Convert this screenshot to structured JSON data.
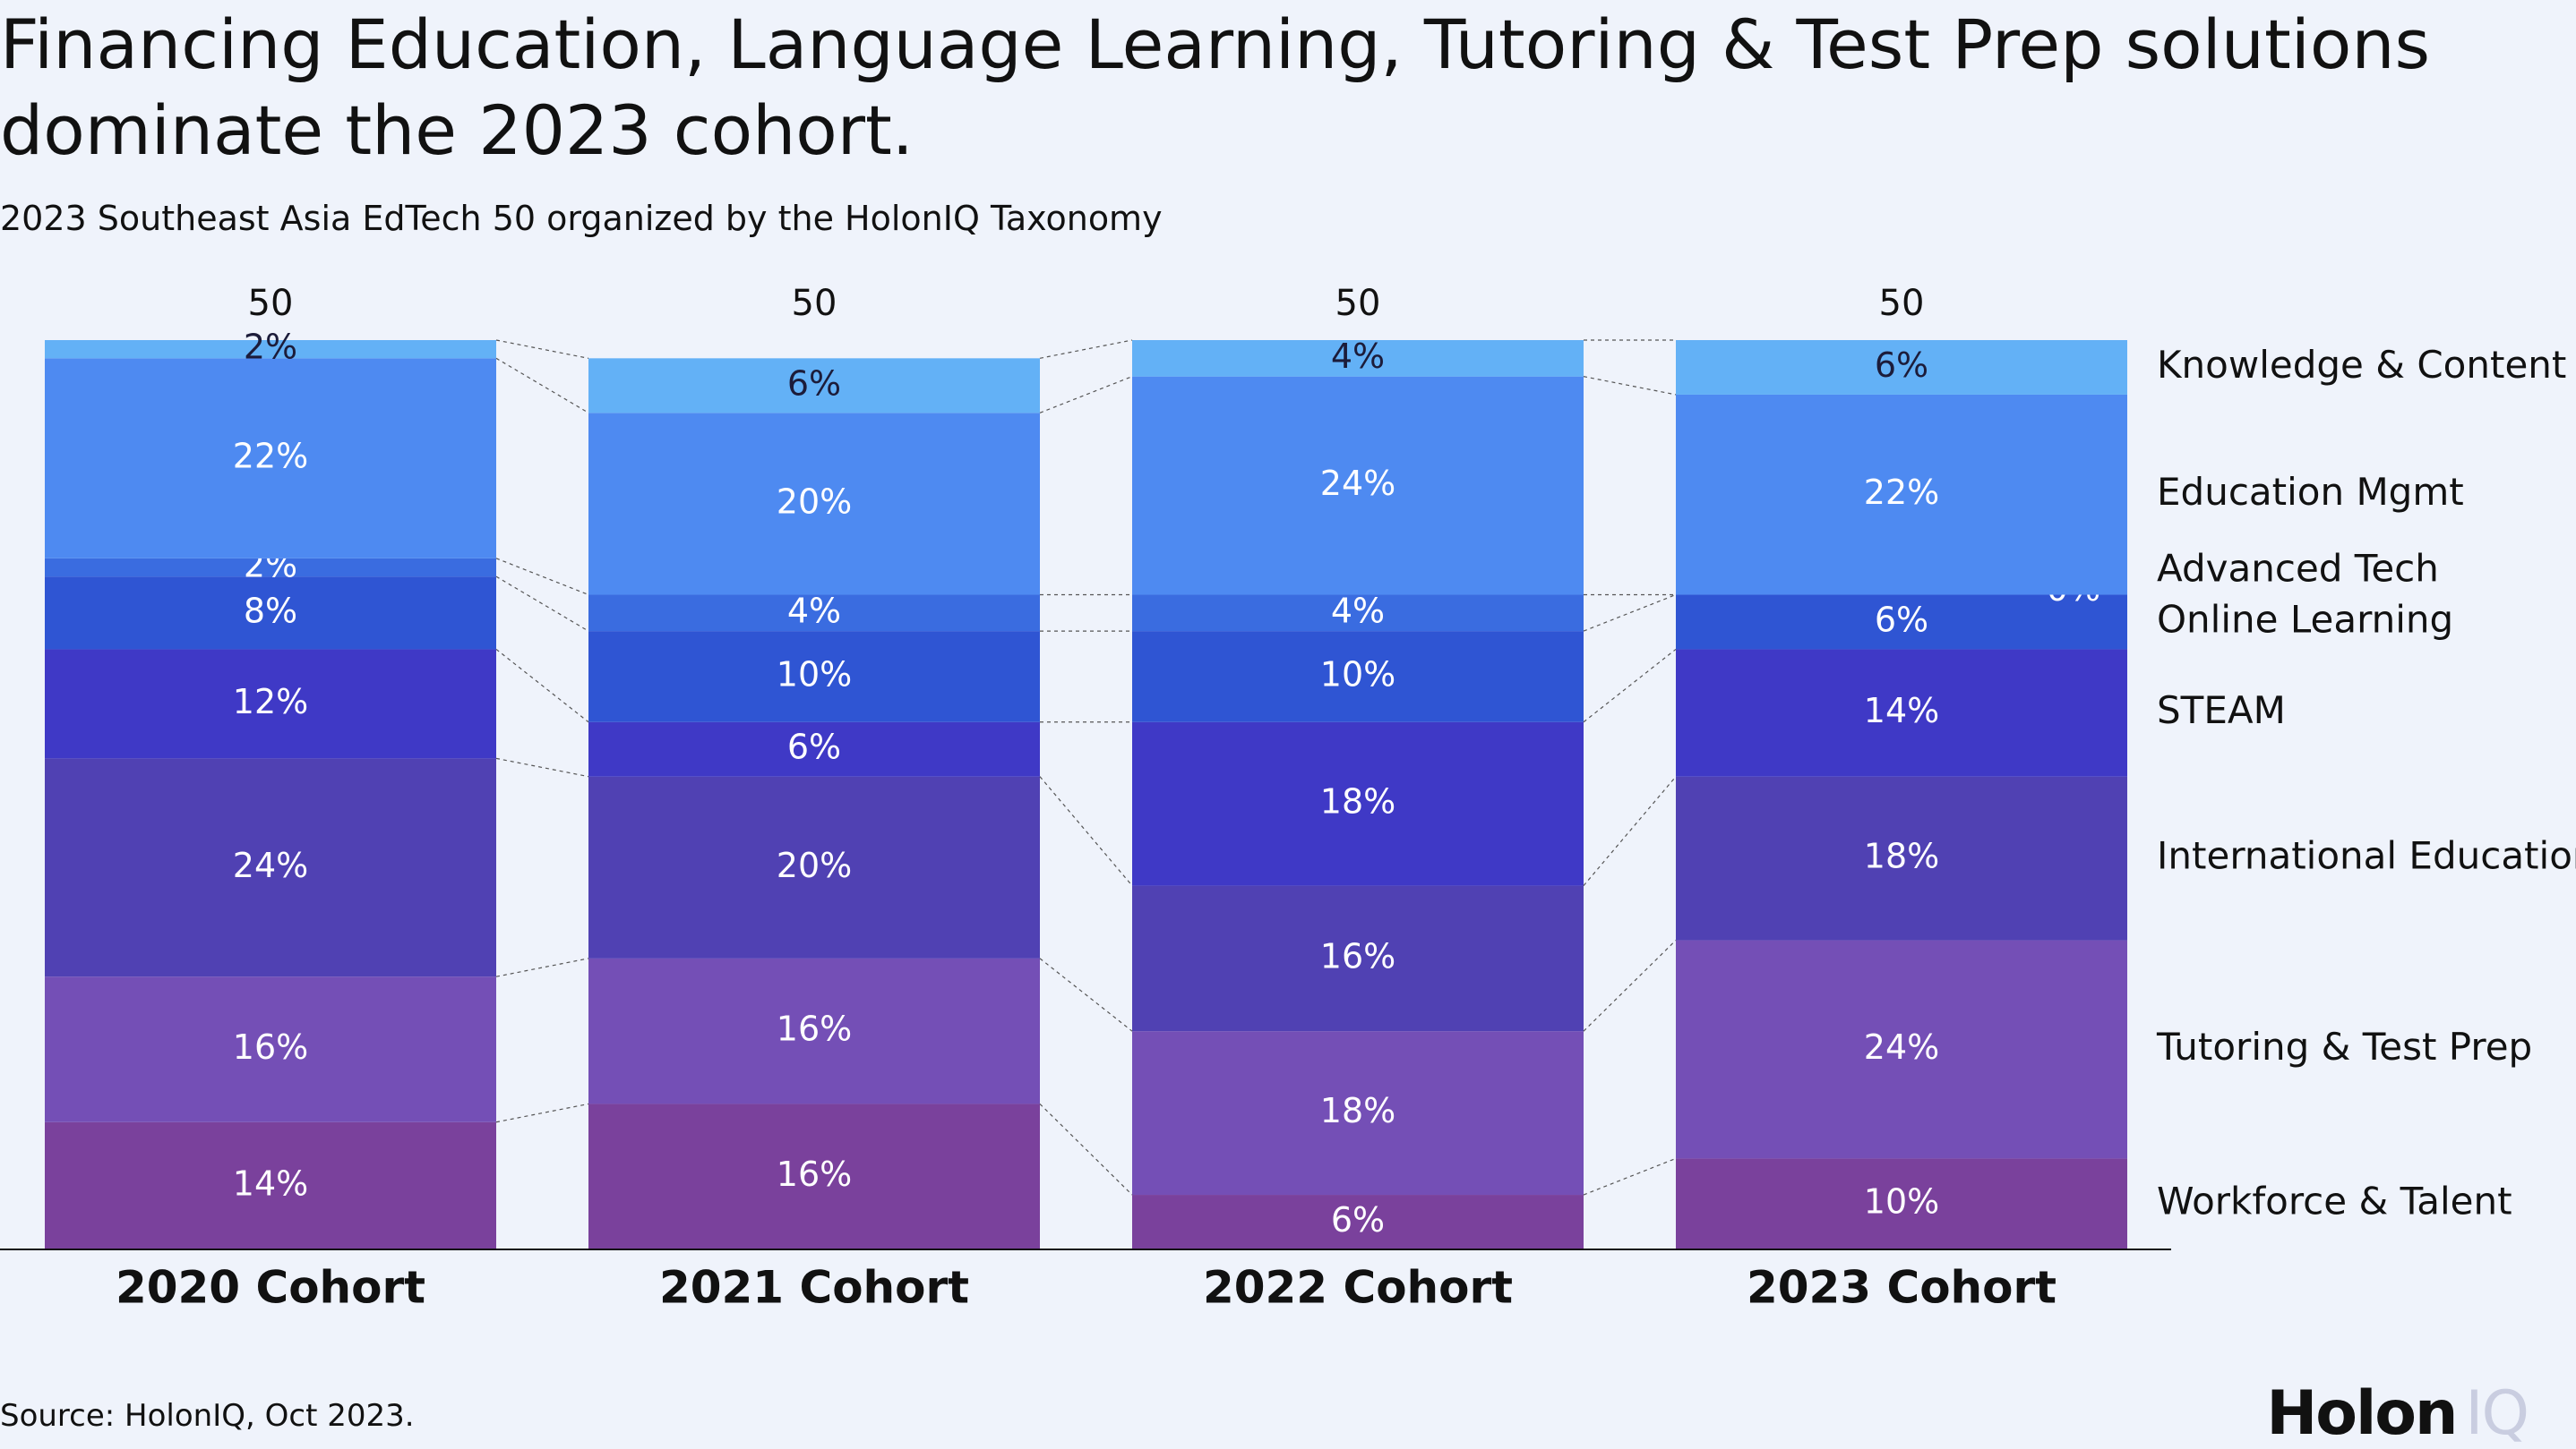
{
  "chart_data": {
    "type": "stacked_bar_percent",
    "title": "Financing Education, Language Learning, Tutoring & Test Prep solutions dominate the 2023 cohort.",
    "subtitle": "2023 Southeast Asia EdTech 50 organized by the HolonIQ Taxonomy",
    "source": "Source: HolonIQ, Oct 2023.",
    "logo": [
      "Holon",
      "IQ"
    ],
    "categories": [
      "2020 Cohort",
      "2021 Cohort",
      "2022 Cohort",
      "2023 Cohort"
    ],
    "totals": [
      50,
      50,
      50,
      50
    ],
    "ylim": [
      0,
      100
    ],
    "legend": "right",
    "series": [
      {
        "name": "Workforce & Talent",
        "color": "#7a419c",
        "label_color": "#ffffff",
        "values": [
          14,
          16,
          6,
          10
        ],
        "value_labels": [
          "14%",
          "16%",
          "6%",
          "10%"
        ]
      },
      {
        "name": "Tutoring & Test Prep",
        "color": "#744fb6",
        "label_color": "#ffffff",
        "values": [
          16,
          16,
          18,
          24
        ],
        "value_labels": [
          "16%",
          "16%",
          "18%",
          "24%"
        ]
      },
      {
        "name": "International Education",
        "color": "#5041b3",
        "label_color": "#ffffff",
        "values": [
          24,
          20,
          16,
          18
        ],
        "value_labels": [
          "24%",
          "20%",
          "16%",
          "18%"
        ]
      },
      {
        "name": "STEAM",
        "color": "#3f39c6",
        "label_color": "#ffffff",
        "values": [
          12,
          6,
          18,
          14
        ],
        "value_labels": [
          "12%",
          "6%",
          "18%",
          "14%"
        ]
      },
      {
        "name": "Online Learning",
        "color": "#2f55d3",
        "label_color": "#ffffff",
        "values": [
          8,
          10,
          10,
          6
        ],
        "value_labels": [
          "8%",
          "10%",
          "10%",
          "6%"
        ]
      },
      {
        "name": "Advanced Tech",
        "color": "#3a6ce0",
        "label_color": "#ffffff",
        "values": [
          2,
          4,
          4,
          0
        ],
        "value_labels": [
          "2%",
          "4%",
          "4%",
          "0%"
        ]
      },
      {
        "name": "Education Mgmt",
        "color": "#4e8af1",
        "label_color": "#ffffff",
        "values": [
          22,
          20,
          24,
          22
        ],
        "value_labels": [
          "22%",
          "20%",
          "24%",
          "22%"
        ]
      },
      {
        "name": "Knowledge & Content",
        "color": "#63b1f6",
        "label_color": "#1c1c3a",
        "values": [
          2,
          6,
          4,
          6
        ],
        "value_labels": [
          "2%",
          "6%",
          "4%",
          "6%"
        ]
      }
    ]
  }
}
